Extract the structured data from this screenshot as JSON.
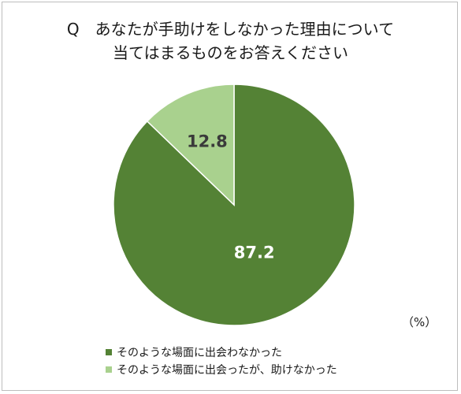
{
  "title": {
    "line1": "Q　あなたが手助けをしなかった理由について",
    "line2": "当てはまるものをお答えください"
  },
  "unit_label": "（%）",
  "chart_data": {
    "type": "pie",
    "title": "Q　あなたが手助けをしなかった理由について 当てはまるものをお答えください",
    "unit": "%",
    "start_angle_deg": 0,
    "direction": "clockwise",
    "legend_position": "bottom-left",
    "slices": [
      {
        "label": "そのような場面に出会わなかった",
        "value": 87.2,
        "value_label": "87.2",
        "color": "#548235"
      },
      {
        "label": "そのような場面に出会ったが、助けなかった",
        "value": 12.8,
        "value_label": "12.8",
        "color": "#a9d18e"
      }
    ]
  },
  "legend": {
    "items": [
      {
        "label": "そのような場面に出会わなかった",
        "color": "#548235"
      },
      {
        "label": "そのような場面に出会ったが、助けなかった",
        "color": "#a9d18e"
      }
    ]
  }
}
